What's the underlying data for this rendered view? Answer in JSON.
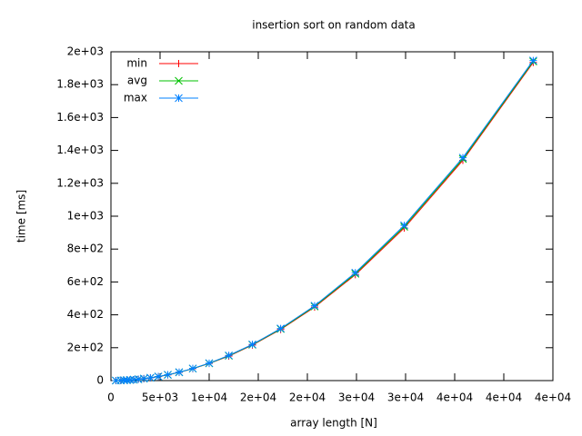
{
  "chart_data": {
    "type": "line",
    "title": "insertion sort on random data",
    "xlabel": "array length [N]",
    "ylabel": "time [ms]",
    "x": [
      500,
      1000,
      1345,
      1615,
      1938,
      2326,
      2791,
      3349,
      4019,
      4823,
      5787,
      6944,
      8333,
      10000,
      12000,
      14400,
      17280,
      20736,
      24883,
      29860,
      35832,
      42998
    ],
    "series": [
      {
        "name": "min",
        "color": "#ff0000",
        "marker": "plus",
        "values": [
          0.25,
          1.0,
          1.85,
          2.65,
          3.85,
          5.6,
          8.1,
          11.6,
          16.8,
          24.1,
          34.8,
          50.1,
          72.2,
          104,
          149,
          216,
          311,
          447,
          644,
          928,
          1340,
          1935
        ]
      },
      {
        "name": "avg",
        "color": "#00c000",
        "marker": "cross",
        "values": [
          0.26,
          1.05,
          1.9,
          2.7,
          3.9,
          5.7,
          8.2,
          11.8,
          17.0,
          24.4,
          35.2,
          50.6,
          72.9,
          105,
          151,
          218,
          314,
          451,
          650,
          936,
          1348,
          1941
        ]
      },
      {
        "name": "max",
        "color": "#0080ff",
        "marker": "star",
        "values": [
          0.27,
          1.1,
          1.95,
          2.75,
          3.95,
          5.8,
          8.3,
          12.0,
          17.2,
          24.7,
          35.6,
          51.1,
          73.6,
          106,
          153,
          220,
          317,
          455,
          656,
          944,
          1356,
          1947
        ]
      }
    ],
    "xlim": [
      0,
      45000
    ],
    "xticks": [
      0,
      {
        "value": 5000,
        "label": "5e+03"
      },
      {
        "value": 10000,
        "label": "1e+04"
      },
      {
        "value": 15000,
        "label": "2e+04"
      },
      {
        "value": 20000,
        "label": "2e+04"
      },
      {
        "value": 25000,
        "label": "3e+04"
      },
      {
        "value": 30000,
        "label": "3e+04"
      },
      {
        "value": 35000,
        "label": "4e+04"
      },
      {
        "value": 40000,
        "label": "4e+04"
      },
      {
        "value": 45000,
        "label": "4e+04"
      }
    ],
    "ylim": [
      0,
      2000
    ],
    "yticks": [
      0,
      {
        "value": 200,
        "label": "2e+02"
      },
      {
        "value": 400,
        "label": "4e+02"
      },
      {
        "value": 600,
        "label": "6e+02"
      },
      {
        "value": 800,
        "label": "8e+02"
      },
      {
        "value": 1000,
        "label": "1e+03"
      },
      {
        "value": 1200,
        "label": "1.2e+03"
      },
      {
        "value": 1400,
        "label": "1.4e+03"
      },
      {
        "value": 1600,
        "label": "1.6e+03"
      },
      {
        "value": 1800,
        "label": "1.8e+03"
      },
      {
        "value": 2000,
        "label": "2e+03"
      }
    ],
    "legend": "top-left"
  }
}
